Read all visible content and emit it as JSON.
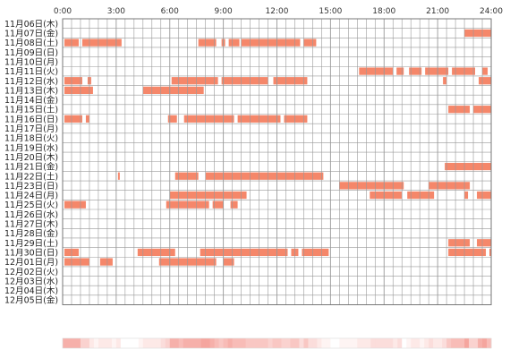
{
  "chart_data": {
    "type": "heatmap",
    "title": "",
    "xlabel": "",
    "ylabel": "",
    "x_ticks": [
      "0:00",
      "3:00",
      "6:00",
      "9:00",
      "12:00",
      "15:00",
      "18:00",
      "21:00",
      "24:00"
    ],
    "x_range_hours": [
      0,
      24
    ],
    "grid": true,
    "colors": {
      "bar": "#f5876a",
      "bar_light": "#f9b39d",
      "grid": "#999999",
      "border": "#777777"
    },
    "rows": [
      {
        "label": "11月06日(木)",
        "segments": []
      },
      {
        "label": "11月07日(金)",
        "segments": [
          [
            22.5,
            24
          ]
        ]
      },
      {
        "label": "11月08日(土)",
        "segments": [
          [
            0.1,
            0.9
          ],
          [
            1.1,
            3.3
          ],
          [
            7.6,
            8.6
          ],
          [
            8.9,
            9.1
          ],
          [
            9.3,
            9.9
          ],
          [
            10.0,
            13.3
          ],
          [
            13.5,
            14.2
          ]
        ]
      },
      {
        "label": "11月09日(日)",
        "segments": []
      },
      {
        "label": "11月10日(月)",
        "segments": []
      },
      {
        "label": "11月11日(火)",
        "segments": [
          [
            16.6,
            18.5
          ],
          [
            18.7,
            19.1
          ],
          [
            19.4,
            20.1
          ],
          [
            20.3,
            21.6
          ],
          [
            21.8,
            23.1
          ],
          [
            23.5,
            23.8
          ]
        ]
      },
      {
        "label": "11月12日(水)",
        "segments": [
          [
            0.1,
            1.1
          ],
          [
            1.4,
            1.6
          ],
          [
            6.1,
            8.7
          ],
          [
            8.9,
            11.5
          ],
          [
            11.8,
            13.7
          ],
          [
            21.3,
            21.5
          ],
          [
            23.3,
            24
          ]
        ]
      },
      {
        "label": "11月13日(木)",
        "segments": [
          [
            0.1,
            1.7
          ],
          [
            4.5,
            7.9
          ]
        ]
      },
      {
        "label": "11月14日(金)",
        "segments": []
      },
      {
        "label": "11月15日(土)",
        "segments": [
          [
            21.6,
            22.8
          ],
          [
            23.0,
            24
          ]
        ]
      },
      {
        "label": "11月16日(日)",
        "segments": [
          [
            0.1,
            1.1
          ],
          [
            1.3,
            1.5
          ],
          [
            5.9,
            6.4
          ],
          [
            6.8,
            9.6
          ],
          [
            9.8,
            12.2
          ],
          [
            12.4,
            13.7
          ]
        ]
      },
      {
        "label": "11月17日(月)",
        "segments": []
      },
      {
        "label": "11月18日(火)",
        "segments": []
      },
      {
        "label": "11月19日(水)",
        "segments": []
      },
      {
        "label": "11月20日(木)",
        "segments": []
      },
      {
        "label": "11月21日(金)",
        "segments": [
          [
            21.4,
            24
          ]
        ]
      },
      {
        "label": "11月22日(土)",
        "segments": [
          [
            3.1,
            3.2
          ],
          [
            6.3,
            7.6
          ],
          [
            8.0,
            14.6
          ]
        ]
      },
      {
        "label": "11月23日(日)",
        "segments": [
          [
            15.5,
            19.1
          ],
          [
            20.5,
            22.8
          ]
        ]
      },
      {
        "label": "11月24日(月)",
        "segments": [
          [
            6.0,
            10.3
          ],
          [
            17.2,
            19.0
          ],
          [
            19.3,
            20.8
          ],
          [
            22.5,
            22.7
          ],
          [
            23.2,
            24
          ]
        ]
      },
      {
        "label": "11月25日(火)",
        "segments": [
          [
            0.1,
            1.3
          ],
          [
            5.8,
            8.2
          ],
          [
            8.4,
            9.0
          ],
          [
            9.4,
            9.8
          ]
        ]
      },
      {
        "label": "11月26日(水)",
        "segments": []
      },
      {
        "label": "11月27日(木)",
        "segments": []
      },
      {
        "label": "11月28日(金)",
        "segments": []
      },
      {
        "label": "11月29日(土)",
        "segments": [
          [
            21.6,
            22.8
          ],
          [
            23.2,
            24
          ]
        ]
      },
      {
        "label": "11月30日(日)",
        "segments": [
          [
            0.1,
            0.9
          ],
          [
            4.2,
            6.3
          ],
          [
            7.7,
            12.6
          ],
          [
            12.8,
            13.2
          ],
          [
            13.4,
            14.9
          ],
          [
            21.6,
            23.7
          ],
          [
            23.9,
            24
          ]
        ]
      },
      {
        "label": "12月01日(月)",
        "segments": [
          [
            0.1,
            1.5
          ],
          [
            2.1,
            2.8
          ],
          [
            5.4,
            8.6
          ],
          [
            9.0,
            9.6
          ]
        ]
      },
      {
        "label": "12月02日(火)",
        "segments": []
      },
      {
        "label": "12月03日(水)",
        "segments": []
      },
      {
        "label": "12月04日(木)",
        "segments": []
      },
      {
        "label": "12月05日(金)",
        "segments": []
      }
    ]
  }
}
